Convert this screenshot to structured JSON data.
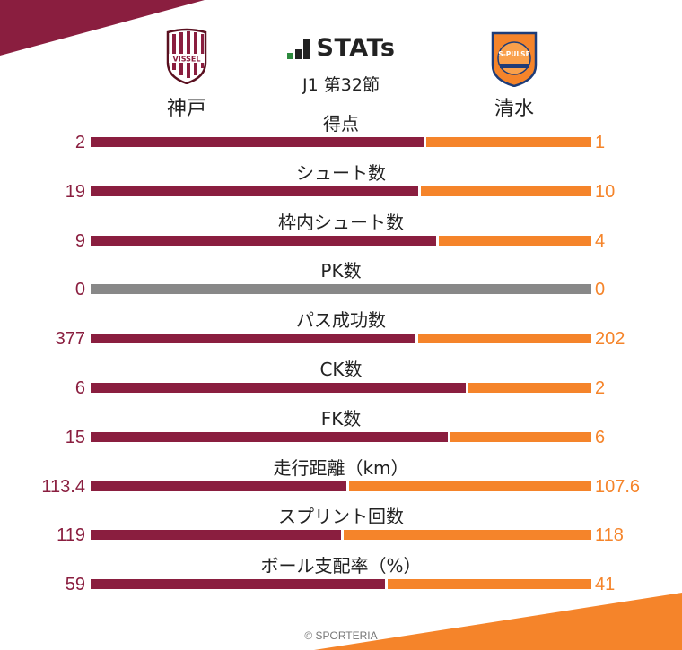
{
  "colors": {
    "home": "#8a1e3f",
    "away": "#f5842a",
    "tie": "#888888",
    "home_corner": "#8a1e3f",
    "away_corner": "#f5842a"
  },
  "header": {
    "logo_text": "STATs",
    "round": "J1 第32節",
    "home_team": "神戸",
    "away_team": "清水",
    "home_crest_text": "VISSEL",
    "away_crest_text": "S-PULSE"
  },
  "footer": {
    "copyright": "© SPORTERIA"
  },
  "chart_data": {
    "type": "bar",
    "title": "STATs",
    "subtitle": "J1 第32節",
    "series": [
      {
        "name": "神戸"
      },
      {
        "name": "清水"
      }
    ],
    "rows": [
      {
        "label": "得点",
        "home": "2",
        "away": "1",
        "home_value": 2,
        "away_value": 1
      },
      {
        "label": "シュート数",
        "home": "19",
        "away": "10",
        "home_value": 19,
        "away_value": 10
      },
      {
        "label": "枠内シュート数",
        "home": "9",
        "away": "4",
        "home_value": 9,
        "away_value": 4
      },
      {
        "label": "PK数",
        "home": "0",
        "away": "0",
        "home_value": 0,
        "away_value": 0
      },
      {
        "label": "パス成功数",
        "home": "377",
        "away": "202",
        "home_value": 377,
        "away_value": 202
      },
      {
        "label": "CK数",
        "home": "6",
        "away": "2",
        "home_value": 6,
        "away_value": 2
      },
      {
        "label": "FK数",
        "home": "15",
        "away": "6",
        "home_value": 15,
        "away_value": 6
      },
      {
        "label": "走行距離（km）",
        "home": "113.4",
        "away": "107.6",
        "home_value": 113.4,
        "away_value": 107.6
      },
      {
        "label": "スプリント回数",
        "home": "119",
        "away": "118",
        "home_value": 119,
        "away_value": 118
      },
      {
        "label": "ボール支配率（%）",
        "home": "59",
        "away": "41",
        "home_value": 59,
        "away_value": 41
      }
    ]
  }
}
